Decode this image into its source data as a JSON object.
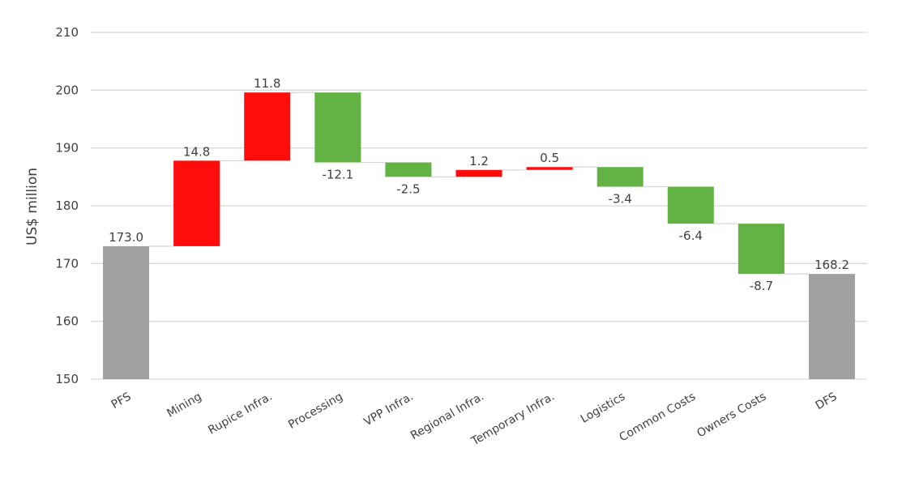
{
  "chart_data": {
    "type": "bar",
    "subtype": "waterfall",
    "title": "",
    "xlabel": "",
    "ylabel": "US$ million",
    "ylim": [
      150,
      210
    ],
    "yticks": [
      150,
      160,
      170,
      180,
      190,
      200,
      210
    ],
    "grid": true,
    "legend": "none",
    "categories": [
      "PFS",
      "Mining",
      "Rupice Infra.",
      "Processing",
      "VPP Infra.",
      "Regional Infra.",
      "Temporary Infra.",
      "Logistics",
      "Common Costs",
      "Owners Costs",
      "DFS"
    ],
    "values": [
      173.0,
      14.8,
      11.8,
      -12.1,
      -2.5,
      1.2,
      0.5,
      -3.4,
      -6.4,
      -8.7,
      168.2
    ],
    "kinds": [
      "total",
      "delta",
      "delta",
      "delta",
      "delta",
      "delta",
      "delta",
      "delta",
      "delta",
      "delta",
      "total"
    ],
    "data_labels": [
      "173.0",
      "14.8",
      "11.8",
      "-12.1",
      "-2.5",
      "1.2",
      "0.5",
      "-3.4",
      "-6.4",
      "-8.7",
      "168.2"
    ],
    "colors": {
      "total": "#a0a0a0",
      "increase": "#ff0d0d",
      "decrease": "#62b344",
      "grid": "#d9d9d9",
      "connector": "#d9d9d9"
    }
  }
}
